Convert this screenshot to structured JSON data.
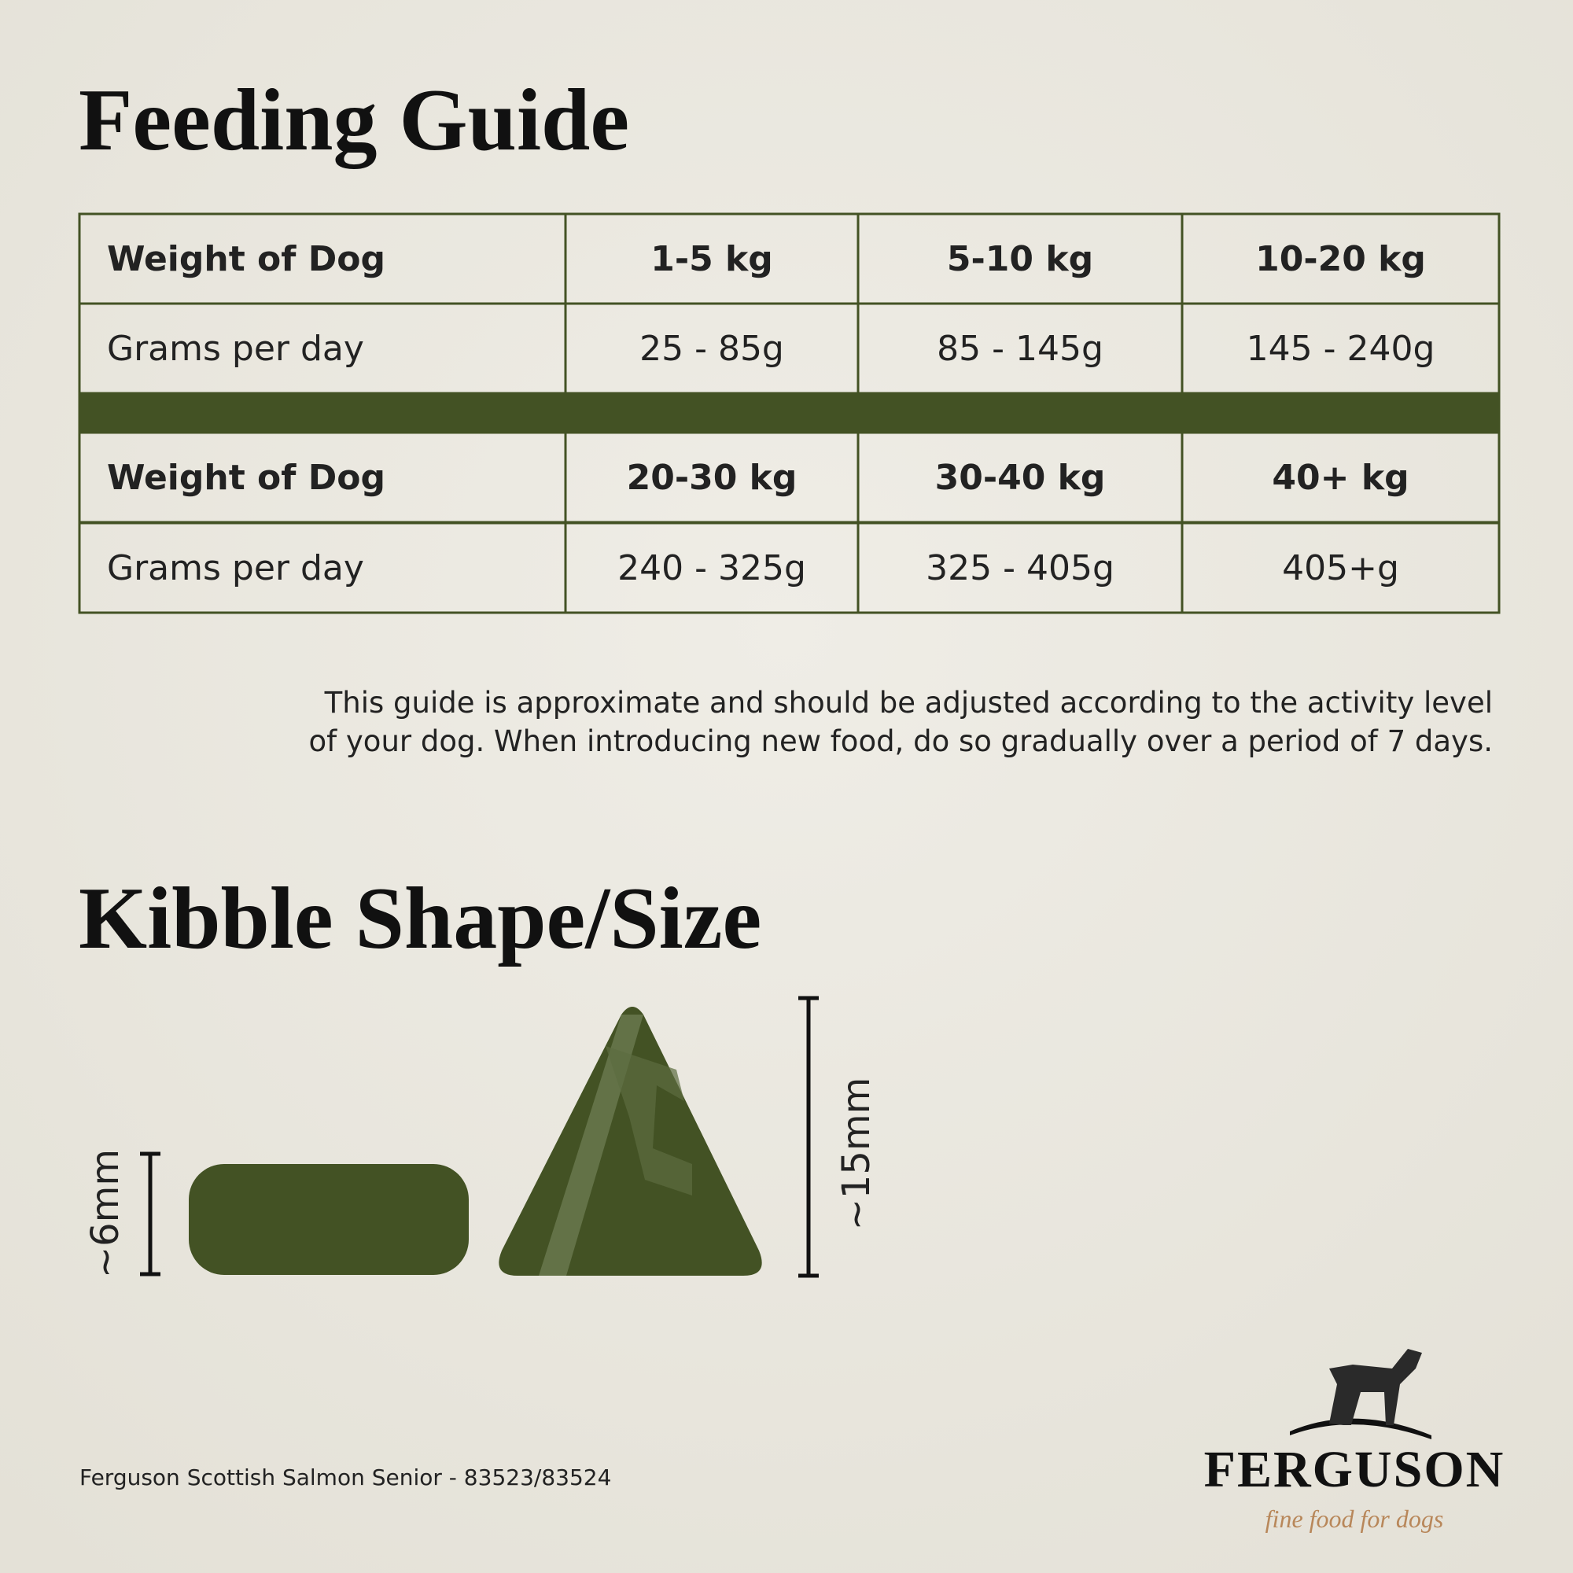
{
  "header": {
    "title": "Feeding Guide"
  },
  "table": {
    "rows": [
      [
        "Weight of Dog",
        "1-5 kg",
        "5-10 kg",
        "10-20 kg"
      ],
      [
        "Grams per day",
        "25 - 85g",
        "85 - 145g",
        "145 - 240g"
      ],
      [
        "Weight of Dog",
        "20-30 kg",
        "30-40 kg",
        "40+ kg"
      ],
      [
        "Grams per day",
        "240 - 325g",
        "325 - 405g",
        "405+g"
      ]
    ]
  },
  "note": [
    "This guide is approximate and should be adjusted according to the activity level",
    "of your dog. When introducing new food, do so gradually over a period of 7 days."
  ],
  "kibble": {
    "title": "Kibble Shape/Size",
    "small_label": "~6mm",
    "large_label": "~15mm"
  },
  "footer": {
    "product": "Ferguson Scottish Salmon Senior - 83523/83524"
  },
  "logo": {
    "name": "FERGUSON",
    "tagline": "fine food for dogs"
  }
}
